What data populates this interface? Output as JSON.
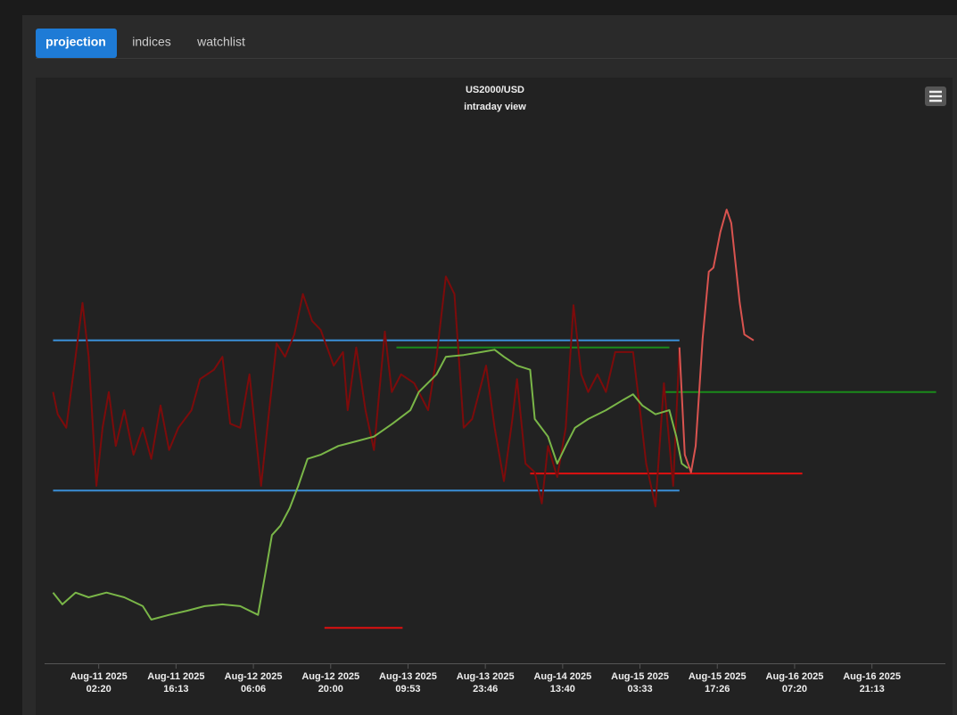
{
  "tabs": [
    "projection",
    "indices",
    "watchlist"
  ],
  "chart_data": {
    "type": "line",
    "title": "US2000/USD",
    "subtitle": "intraday view",
    "xlim": [
      -0.7,
      10.95
    ],
    "ylim": [
      0,
      100
    ],
    "xticks": [
      {
        "value": 0,
        "label": [
          "Aug-11 2025",
          "02:20"
        ]
      },
      {
        "value": 1,
        "label": [
          "Aug-11 2025",
          "16:13"
        ]
      },
      {
        "value": 2,
        "label": [
          "Aug-12 2025",
          "06:06"
        ]
      },
      {
        "value": 3,
        "label": [
          "Aug-12 2025",
          "20:00"
        ]
      },
      {
        "value": 4,
        "label": [
          "Aug-13 2025",
          "09:53"
        ]
      },
      {
        "value": 5,
        "label": [
          "Aug-13 2025",
          "23:46"
        ]
      },
      {
        "value": 6,
        "label": [
          "Aug-14 2025",
          "13:40"
        ]
      },
      {
        "value": 7,
        "label": [
          "Aug-15 2025",
          "03:33"
        ]
      },
      {
        "value": 8,
        "label": [
          "Aug-15 2025",
          "17:26"
        ]
      },
      {
        "value": 9,
        "label": [
          "Aug-16 2025",
          "07:20"
        ]
      },
      {
        "value": 10,
        "label": [
          "Aug-16 2025",
          "21:13"
        ]
      }
    ],
    "series": [
      {
        "color": "#3a8fd8",
        "x": [
          -0.59,
          7.51
        ],
        "values": [
          55.2,
          55.2
        ]
      },
      {
        "color": "#3a8fd8",
        "x": [
          -0.59,
          7.51
        ],
        "values": [
          29.6,
          29.6
        ]
      },
      {
        "color": "#1a8a1a",
        "x": [
          3.85,
          7.38
        ],
        "values": [
          54.0,
          54.0
        ]
      },
      {
        "color": "#1a8a1a",
        "x": [
          7.31,
          10.83
        ],
        "values": [
          46.4,
          46.4
        ]
      },
      {
        "color": "#e01010",
        "x": [
          5.58,
          9.1
        ],
        "values": [
          32.5,
          32.5
        ]
      },
      {
        "color": "#e01010",
        "x": [
          2.92,
          3.93
        ],
        "values": [
          6.2,
          6.2
        ]
      },
      {
        "color": "#7d0b0b",
        "x": [
          -0.59,
          -0.53,
          -0.42,
          -0.3,
          -0.21,
          -0.13,
          -0.03,
          0.05,
          0.13,
          0.22,
          0.33,
          0.45,
          0.57,
          0.68,
          0.8,
          0.91,
          1.03,
          1.2,
          1.31,
          1.49,
          1.6,
          1.7,
          1.83,
          1.95,
          2.1,
          2.18,
          2.3,
          2.41,
          2.53,
          2.64,
          2.76,
          2.87,
          3.04,
          3.16,
          3.22,
          3.33,
          3.45,
          3.56,
          3.7,
          3.79,
          3.91,
          4.08,
          4.26,
          4.37,
          4.49,
          4.6,
          4.72,
          4.83,
          5.01,
          5.12,
          5.24,
          5.35,
          5.41,
          5.52,
          5.64,
          5.73,
          5.81,
          5.93,
          6.04,
          6.14,
          6.24,
          6.33,
          6.45,
          6.56,
          6.68,
          6.79,
          6.91,
          7.0,
          7.08,
          7.2,
          7.31,
          7.43,
          7.51
        ],
        "values": [
          46.4,
          42.6,
          40.3,
          52.4,
          61.6,
          52.4,
          30.4,
          40.3,
          46.4,
          37.2,
          43.3,
          35.7,
          40.3,
          35.0,
          44.1,
          36.5,
          40.3,
          43.3,
          48.6,
          50.2,
          52.4,
          41.0,
          40.3,
          49.4,
          30.4,
          40.3,
          54.7,
          52.4,
          56.2,
          63.1,
          58.5,
          57.0,
          50.9,
          53.2,
          43.3,
          54.0,
          43.3,
          36.5,
          56.7,
          46.4,
          49.4,
          47.9,
          43.3,
          52.4,
          66.1,
          63.1,
          40.3,
          41.8,
          50.9,
          40.3,
          31.2,
          41.8,
          48.6,
          34.2,
          32.7,
          27.4,
          37.2,
          31.9,
          40.3,
          61.2,
          49.4,
          46.4,
          49.4,
          46.4,
          53.2,
          53.2,
          53.2,
          43.3,
          34.2,
          26.9,
          47.9,
          30.4,
          54.0
        ]
      },
      {
        "color": "#7ab648",
        "x": [
          -0.59,
          -0.47,
          -0.3,
          -0.13,
          0.1,
          0.33,
          0.57,
          0.68,
          0.91,
          1.14,
          1.37,
          1.6,
          1.83,
          2.06,
          2.16,
          2.24,
          2.35,
          2.47,
          2.58,
          2.7,
          2.87,
          3.1,
          3.33,
          3.56,
          3.8,
          4.03,
          4.14,
          4.37,
          4.49,
          4.72,
          4.95,
          5.12,
          5.24,
          5.41,
          5.58,
          5.64,
          5.81,
          5.93,
          6.04,
          6.16,
          6.33,
          6.56,
          6.79,
          6.91,
          7.03,
          7.2,
          7.38,
          7.47,
          7.54,
          7.62
        ],
        "values": [
          12.2,
          10.2,
          12.2,
          11.4,
          12.2,
          11.4,
          9.9,
          7.6,
          8.4,
          9.1,
          9.9,
          10.2,
          9.9,
          8.4,
          15.8,
          22.0,
          23.6,
          26.6,
          30.4,
          35.0,
          35.7,
          37.2,
          38.0,
          38.8,
          41.0,
          43.3,
          46.4,
          49.4,
          52.4,
          52.7,
          53.2,
          53.6,
          52.4,
          50.9,
          50.2,
          41.8,
          38.8,
          34.2,
          37.2,
          40.3,
          41.8,
          43.3,
          45.1,
          46.0,
          44.1,
          42.6,
          43.3,
          38.8,
          34.2,
          33.4
        ]
      },
      {
        "color": "#d9534f",
        "x": [
          7.51,
          7.58,
          7.66,
          7.72,
          7.81,
          7.89,
          7.95,
          8.04,
          8.12,
          8.18,
          8.29,
          8.35,
          8.47
        ],
        "values": [
          54.0,
          35.7,
          32.7,
          37.2,
          55.5,
          66.9,
          67.6,
          73.7,
          77.5,
          75.2,
          61.6,
          56.2,
          55.2
        ]
      }
    ]
  }
}
